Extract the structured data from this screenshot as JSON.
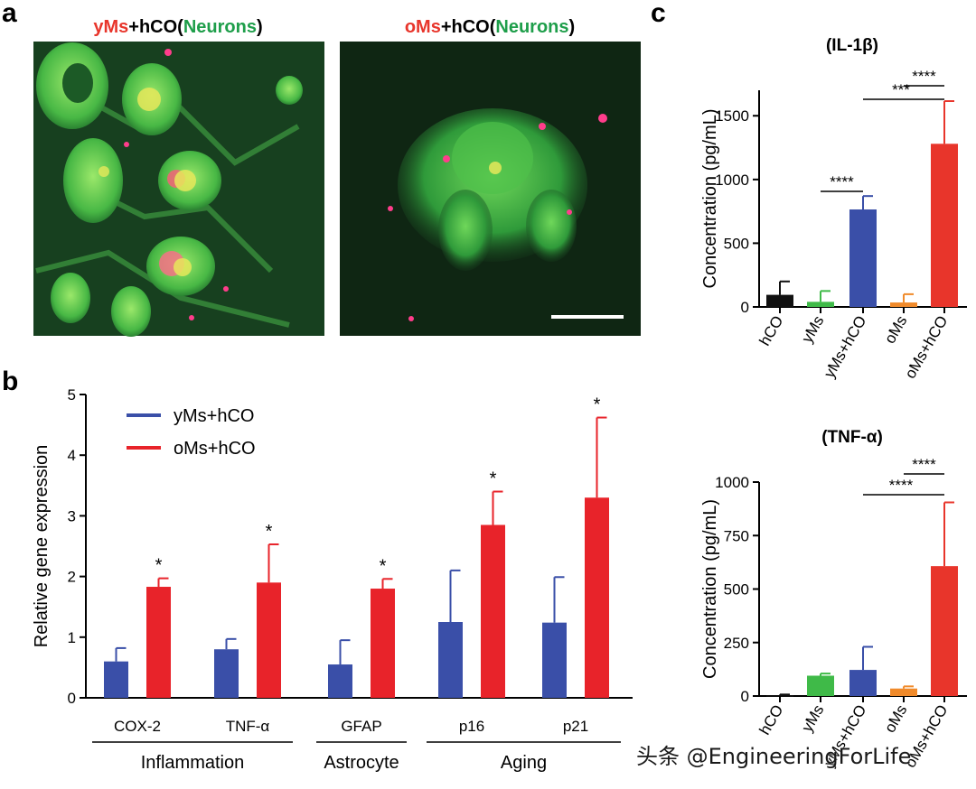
{
  "panel_labels": {
    "a": "a",
    "b": "b",
    "c": "c"
  },
  "panel_a": {
    "left": {
      "prefix": "yMs",
      "suffix": "+hCO(",
      "stain": "Neurons",
      "close": ")"
    },
    "right": {
      "prefix": "oMs",
      "suffix": "+hCO(",
      "stain": "Neurons",
      "close": ")"
    },
    "colors": {
      "prefix": "#e8352b",
      "stain": "#1e9e4a",
      "neuron": "#6ad45a",
      "marker": "#ff3d8b",
      "bg": "#123018"
    }
  },
  "watermark": "头条 @EngineeringForLife",
  "chart_data": [
    {
      "id": "b",
      "type": "bar",
      "ylabel": "Relative gene expression",
      "ylim": [
        0,
        5
      ],
      "yticks": [
        0,
        1,
        2,
        3,
        4,
        5
      ],
      "categories": [
        "COX-2",
        "TNF-α",
        "GFAP",
        "p16",
        "p21"
      ],
      "groups": [
        {
          "label": "Inflammation",
          "from": 0,
          "to": 1
        },
        {
          "label": "Astrocyte",
          "from": 2,
          "to": 2
        },
        {
          "label": "Aging",
          "from": 3,
          "to": 4
        }
      ],
      "series": [
        {
          "name": "yMs+hCO",
          "color": "#3a4fa8",
          "values": [
            0.6,
            0.8,
            0.55,
            1.25,
            1.24
          ],
          "errors": [
            0.22,
            0.17,
            0.4,
            0.85,
            0.75
          ]
        },
        {
          "name": "oMs+hCO",
          "color": "#e8232a",
          "values": [
            1.83,
            1.9,
            1.8,
            2.85,
            3.3
          ],
          "errors": [
            0.14,
            0.63,
            0.16,
            0.55,
            1.32
          ]
        }
      ],
      "annotations": [
        "*",
        "*",
        "*",
        "*",
        "*"
      ],
      "legend": "top-left"
    },
    {
      "id": "c-il1b",
      "type": "bar",
      "title": "(IL-1β)",
      "ylabel": "Concentration (pg/mL)",
      "ylim": [
        0,
        1700
      ],
      "yticks": [
        0,
        500,
        1000,
        1500
      ],
      "categories": [
        "hCO",
        "yMs",
        "yMs+hCO",
        "oMs",
        "oMs+hCO"
      ],
      "values": [
        95,
        40,
        765,
        35,
        1280
      ],
      "errors": [
        105,
        85,
        105,
        65,
        335
      ],
      "colors": [
        "#111111",
        "#3fba48",
        "#3a4fa8",
        "#f08a2a",
        "#e8352b"
      ],
      "significance": [
        {
          "from": 1,
          "to": 2,
          "label": "****"
        },
        {
          "from": 2,
          "to": 4,
          "label": "***"
        },
        {
          "from": 3,
          "to": 4,
          "label": "****"
        }
      ]
    },
    {
      "id": "c-tnfa",
      "type": "bar",
      "title": "(TNF-α)",
      "ylabel": "Concentration (pg/mL)",
      "ylim": [
        0,
        1000
      ],
      "yticks": [
        0,
        250,
        500,
        750,
        1000
      ],
      "categories": [
        "hCO",
        "yMs",
        "yMs+hCO",
        "oMs",
        "oMs+hCO"
      ],
      "values": [
        3,
        95,
        122,
        35,
        607
      ],
      "errors": [
        4,
        10,
        108,
        10,
        298
      ],
      "colors": [
        "#111111",
        "#3fba48",
        "#3a4fa8",
        "#f08a2a",
        "#e8352b"
      ],
      "significance": [
        {
          "from": 2,
          "to": 4,
          "label": "****"
        },
        {
          "from": 3,
          "to": 4,
          "label": "****"
        }
      ]
    }
  ]
}
